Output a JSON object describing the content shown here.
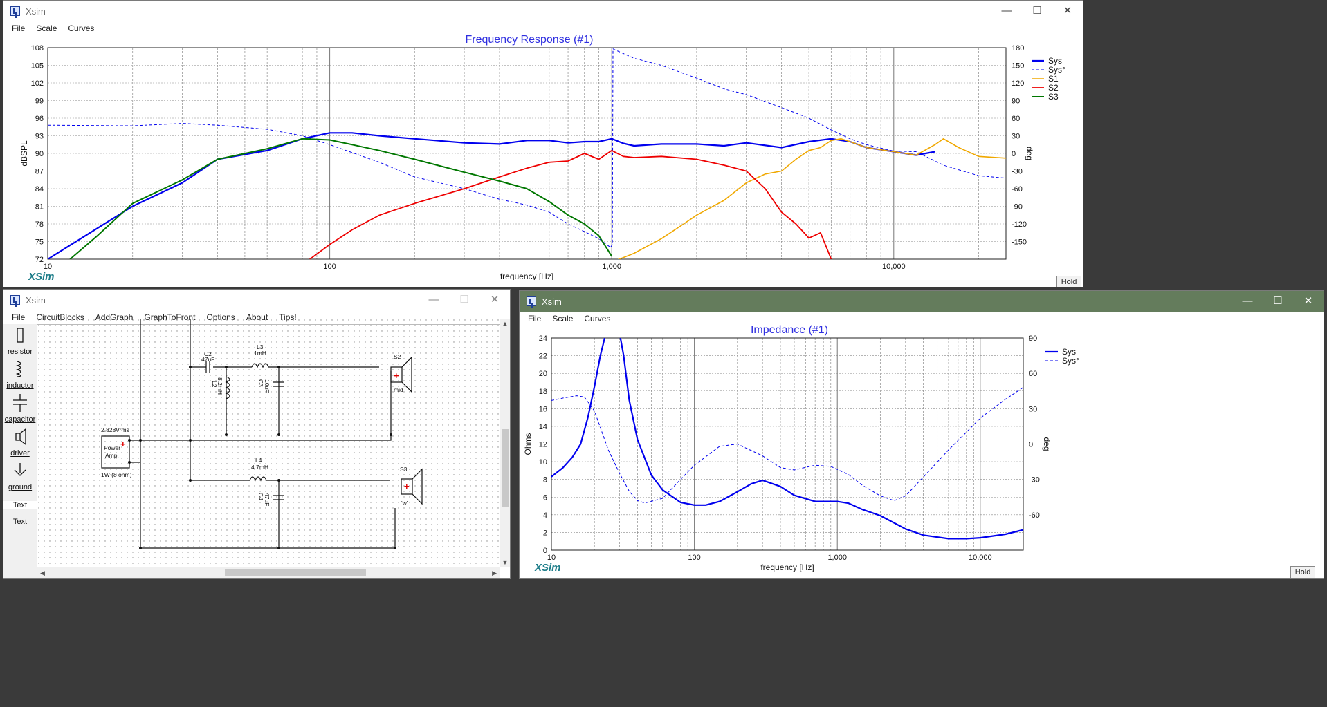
{
  "win_freq": {
    "title": "Xsim",
    "menu": [
      "File",
      "Scale",
      "Curves"
    ],
    "chart_title": "Frequency Response (#1)",
    "logo": "XSim",
    "hold": "Hold"
  },
  "win_circuit": {
    "title": "Xsim",
    "menu": [
      "File",
      "CircuitBlocks",
      "AddGraph",
      "GraphToFront",
      "Options",
      "About",
      "Tips!"
    ],
    "palette": [
      "resistor",
      "inductor",
      "capacitor",
      "driver",
      "ground",
      "Text",
      "Text"
    ],
    "components": {
      "c2": "C2",
      "c2v": "47uF",
      "l3": "L3",
      "l3v": "1mH",
      "l2": "L2",
      "l2v": "8.2mH",
      "c3": "C3",
      "c3v": "10uF",
      "s2": "S2",
      "s2n": "mid",
      "amp_v": "2.828Vrms",
      "amp1": "Power",
      "amp2": "Amp.",
      "amp_p": "1W (8 ohm)",
      "l4": "L4",
      "l4v": "4.7mH",
      "c4": "C4",
      "c4v": "47uF",
      "s3": "S3",
      "s3n": "'w'"
    }
  },
  "win_imp": {
    "title": "Xsim",
    "menu": [
      "File",
      "Scale",
      "Curves"
    ],
    "chart_title": "Impedance (#1)",
    "logo": "XSim",
    "hold": "Hold"
  },
  "chart_data": [
    {
      "type": "line",
      "title": "Frequency Response (#1)",
      "xlabel": "frequency [Hz]",
      "ylabel": "dBSPL",
      "y2label": "deg",
      "xscale": "log",
      "xlim": [
        10,
        25000
      ],
      "ylim": [
        72,
        108
      ],
      "y2lim": [
        -180,
        180
      ],
      "x_ticks": [
        "10",
        "100",
        "1,000",
        "10,000"
      ],
      "y_ticks": [
        "72",
        "75",
        "78",
        "81",
        "84",
        "87",
        "90",
        "93",
        "96",
        "99",
        "102",
        "105",
        "108"
      ],
      "y2_ticks": [
        "-150",
        "-120",
        "-90",
        "-60",
        "-30",
        "0",
        "30",
        "60",
        "90",
        "120",
        "150",
        "180"
      ],
      "legend": "right",
      "grid": true,
      "series": [
        {
          "name": "Sys",
          "color": "#0000ee",
          "width": 2.2,
          "axis": "y",
          "points": [
            [
              10,
              72
            ],
            [
              20,
              81
            ],
            [
              30,
              85
            ],
            [
              40,
              89
            ],
            [
              60,
              90.5
            ],
            [
              80,
              92.5
            ],
            [
              100,
              93.5
            ],
            [
              120,
              93.5
            ],
            [
              150,
              93
            ],
            [
              200,
              92.5
            ],
            [
              300,
              91.8
            ],
            [
              400,
              91.6
            ],
            [
              500,
              92.2
            ],
            [
              600,
              92.2
            ],
            [
              700,
              91.8
            ],
            [
              800,
              92
            ],
            [
              900,
              92
            ],
            [
              1000,
              92.5
            ],
            [
              1100,
              91.7
            ],
            [
              1200,
              91.3
            ],
            [
              1500,
              91.6
            ],
            [
              2000,
              91.6
            ],
            [
              2500,
              91.3
            ],
            [
              3000,
              91.8
            ],
            [
              4000,
              91
            ],
            [
              5000,
              92
            ],
            [
              6000,
              92.5
            ],
            [
              7000,
              92
            ],
            [
              8000,
              91
            ],
            [
              10000,
              90.3
            ],
            [
              12000,
              89.7
            ],
            [
              14000,
              90.3
            ]
          ]
        },
        {
          "name": "Sys°",
          "color": "#0000ee",
          "width": 1,
          "dash": "4,3",
          "axis": "y2",
          "points": [
            [
              10,
              48
            ],
            [
              20,
              47
            ],
            [
              30,
              51
            ],
            [
              40,
              48
            ],
            [
              60,
              41
            ],
            [
              80,
              30
            ],
            [
              100,
              15
            ],
            [
              150,
              -15
            ],
            [
              200,
              -40
            ],
            [
              300,
              -60
            ],
            [
              400,
              -78
            ],
            [
              500,
              -88
            ],
            [
              600,
              -100
            ],
            [
              700,
              -120
            ],
            [
              800,
              -133
            ],
            [
              900,
              -145
            ],
            [
              990,
              -160
            ],
            [
              1005,
              -155
            ],
            [
              1010,
              178
            ],
            [
              1020,
              177
            ],
            [
              1200,
              162
            ],
            [
              1500,
              150
            ],
            [
              2000,
              128
            ],
            [
              2500,
              110
            ],
            [
              3000,
              100
            ],
            [
              4000,
              78
            ],
            [
              5000,
              60
            ],
            [
              6000,
              40
            ],
            [
              7000,
              25
            ],
            [
              8000,
              15
            ],
            [
              10000,
              4
            ],
            [
              12000,
              3
            ],
            [
              15000,
              -20
            ],
            [
              20000,
              -38
            ],
            [
              25000,
              -42
            ]
          ]
        },
        {
          "name": "S1",
          "color": "#f0a800",
          "width": 1.6,
          "axis": "y",
          "points": [
            [
              1000,
              71.5
            ],
            [
              1200,
              73
            ],
            [
              1500,
              75.5
            ],
            [
              1800,
              78
            ],
            [
              2000,
              79.5
            ],
            [
              2500,
              82
            ],
            [
              3000,
              85
            ],
            [
              3500,
              86.5
            ],
            [
              4000,
              87
            ],
            [
              4500,
              89
            ],
            [
              5000,
              90.5
            ],
            [
              5500,
              91
            ],
            [
              6000,
              92.2
            ],
            [
              6500,
              92.5
            ],
            [
              7000,
              92
            ],
            [
              8000,
              91
            ],
            [
              10000,
              90.3
            ],
            [
              12000,
              89.7
            ],
            [
              14000,
              91.5
            ],
            [
              15000,
              92.5
            ],
            [
              17000,
              91
            ],
            [
              20000,
              89.5
            ],
            [
              25000,
              89.2
            ]
          ]
        },
        {
          "name": "S2",
          "color": "#ee0000",
          "width": 1.8,
          "axis": "y",
          "points": [
            [
              85,
              72
            ],
            [
              100,
              74.5
            ],
            [
              120,
              77
            ],
            [
              150,
              79.5
            ],
            [
              200,
              81.5
            ],
            [
              300,
              84
            ],
            [
              400,
              86
            ],
            [
              500,
              87.5
            ],
            [
              600,
              88.5
            ],
            [
              700,
              88.7
            ],
            [
              800,
              90
            ],
            [
              900,
              89
            ],
            [
              1000,
              90.5
            ],
            [
              1100,
              89.5
            ],
            [
              1200,
              89.3
            ],
            [
              1500,
              89.5
            ],
            [
              2000,
              89
            ],
            [
              2500,
              88
            ],
            [
              3000,
              87
            ],
            [
              3500,
              84
            ],
            [
              4000,
              80
            ],
            [
              4500,
              78
            ],
            [
              5000,
              75.6
            ],
            [
              5500,
              76.5
            ],
            [
              6000,
              72
            ]
          ]
        },
        {
          "name": "S3",
          "color": "#007700",
          "width": 2,
          "axis": "y",
          "points": [
            [
              12,
              72
            ],
            [
              15,
              76
            ],
            [
              20,
              81.5
            ],
            [
              30,
              85.5
            ],
            [
              40,
              89
            ],
            [
              60,
              90.8
            ],
            [
              80,
              92.5
            ],
            [
              100,
              92.3
            ],
            [
              120,
              91.5
            ],
            [
              150,
              90.5
            ],
            [
              200,
              89
            ],
            [
              300,
              86.8
            ],
            [
              400,
              85.3
            ],
            [
              500,
              84
            ],
            [
              600,
              81.8
            ],
            [
              700,
              79.5
            ],
            [
              800,
              78
            ],
            [
              900,
              76
            ],
            [
              1000,
              72.5
            ]
          ]
        }
      ]
    },
    {
      "type": "line",
      "title": "Impedance (#1)",
      "xlabel": "frequency [Hz]",
      "ylabel": "Ohms",
      "y2label": "deg",
      "xscale": "log",
      "xlim": [
        10,
        20000
      ],
      "ylim": [
        0,
        24
      ],
      "y2lim": [
        -90,
        90
      ],
      "x_ticks": [
        "10",
        "100",
        "1,000",
        "10,000"
      ],
      "y_ticks": [
        "0",
        "2",
        "4",
        "6",
        "8",
        "10",
        "12",
        "14",
        "16",
        "18",
        "20",
        "22",
        "24"
      ],
      "y2_ticks": [
        "-60",
        "-30",
        "0",
        "30",
        "60",
        "90"
      ],
      "legend": "right",
      "grid": true,
      "series": [
        {
          "name": "Sys",
          "color": "#0000ee",
          "width": 2.2,
          "axis": "y",
          "points": [
            [
              10,
              8.3
            ],
            [
              12,
              9.3
            ],
            [
              14,
              10.5
            ],
            [
              16,
              12
            ],
            [
              18,
              15
            ],
            [
              20,
              18.5
            ],
            [
              22,
              22
            ],
            [
              24,
              24.5
            ],
            [
              30,
              24.5
            ],
            [
              32,
              22
            ],
            [
              35,
              17
            ],
            [
              40,
              12.5
            ],
            [
              50,
              8.5
            ],
            [
              60,
              6.8
            ],
            [
              80,
              5.4
            ],
            [
              100,
              5.1
            ],
            [
              120,
              5.1
            ],
            [
              150,
              5.5
            ],
            [
              200,
              6.6
            ],
            [
              250,
              7.5
            ],
            [
              300,
              7.9
            ],
            [
              400,
              7.2
            ],
            [
              500,
              6.2
            ],
            [
              700,
              5.5
            ],
            [
              1000,
              5.5
            ],
            [
              1200,
              5.3
            ],
            [
              1500,
              4.6
            ],
            [
              2000,
              3.9
            ],
            [
              3000,
              2.4
            ],
            [
              4000,
              1.7
            ],
            [
              6000,
              1.3
            ],
            [
              8000,
              1.3
            ],
            [
              10000,
              1.4
            ],
            [
              15000,
              1.8
            ],
            [
              20000,
              2.3
            ]
          ]
        },
        {
          "name": "Sys°",
          "color": "#0000ee",
          "width": 1,
          "dash": "4,3",
          "axis": "y2",
          "points": [
            [
              10,
              37
            ],
            [
              12,
              39
            ],
            [
              15,
              41
            ],
            [
              17,
              40
            ],
            [
              20,
              28
            ],
            [
              22,
              14
            ],
            [
              25,
              -5
            ],
            [
              30,
              -25
            ],
            [
              35,
              -40
            ],
            [
              40,
              -48
            ],
            [
              45,
              -50
            ],
            [
              60,
              -46
            ],
            [
              80,
              -30
            ],
            [
              100,
              -18
            ],
            [
              150,
              -2
            ],
            [
              200,
              0
            ],
            [
              300,
              -10
            ],
            [
              400,
              -20
            ],
            [
              500,
              -22
            ],
            [
              700,
              -18
            ],
            [
              900,
              -19
            ],
            [
              1200,
              -26
            ],
            [
              1500,
              -35
            ],
            [
              2000,
              -44
            ],
            [
              2500,
              -48
            ],
            [
              3000,
              -44
            ],
            [
              4000,
              -28
            ],
            [
              6000,
              -5
            ],
            [
              8000,
              10
            ],
            [
              10000,
              22
            ],
            [
              15000,
              38
            ],
            [
              20000,
              48
            ]
          ]
        }
      ]
    }
  ]
}
